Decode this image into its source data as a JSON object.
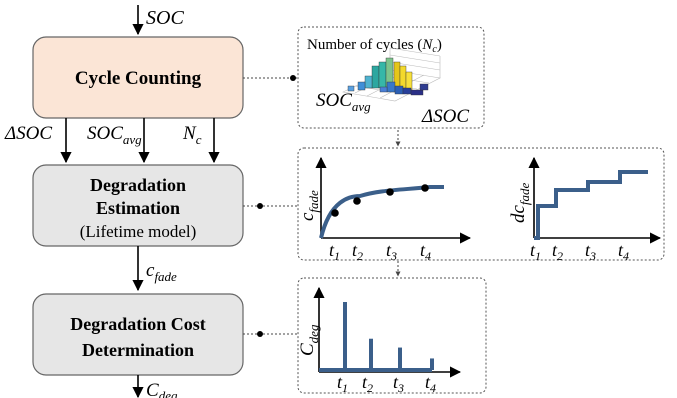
{
  "colors": {
    "cycle_box": "#fbe5d6",
    "gray_box": "#e6e6e6",
    "curve": "#3b5f8a",
    "border": "#555555"
  },
  "diagram": {
    "input_var": "SOC",
    "box1": {
      "label": "Cycle Counting"
    },
    "box2": {
      "line1": "Degradation",
      "line2": "Estimation",
      "line3": "(Lifetime model)"
    },
    "box3": {
      "line1": "Degradation Cost",
      "line2": "Determination"
    },
    "outputs1": [
      {
        "main": "ΔSOC",
        "sub": ""
      },
      {
        "main": "SOC",
        "sub": "avg"
      },
      {
        "main": "N",
        "sub": "c"
      }
    ],
    "output2": {
      "main": "c",
      "sub": "fade"
    },
    "output3": {
      "main": "C",
      "sub": "deg"
    }
  },
  "panel1": {
    "title_prefix": "Number of cycles (",
    "title_var": "N",
    "title_sub": "c",
    "title_suffix": ")",
    "label_left_main": "SOC",
    "label_left_sub": "avg",
    "label_right": "ΔSOC"
  },
  "panel2": {
    "left_ylabel_main": "c",
    "left_ylabel_sub": "fade",
    "right_ylabel_main": "dc",
    "right_ylabel_sub": "fade",
    "ticks": [
      "t1",
      "t2",
      "t3",
      "t4"
    ]
  },
  "panel3": {
    "ylabel_main": "C",
    "ylabel_sub": "deg",
    "ticks": [
      "t1",
      "t2",
      "t3",
      "t4"
    ],
    "impulse_heights": [
      1.0,
      0.46,
      0.33,
      0.17
    ]
  }
}
